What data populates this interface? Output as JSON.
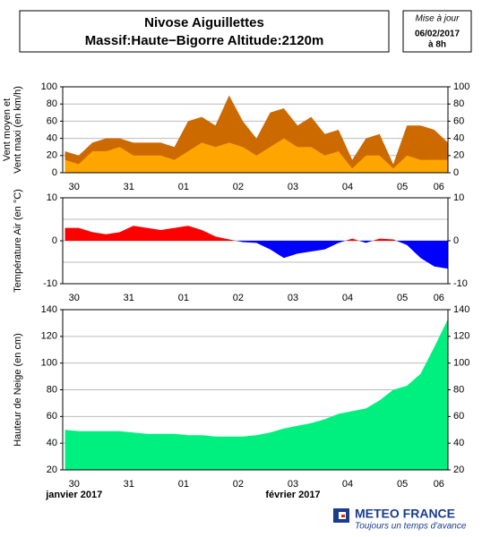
{
  "header": {
    "title": "Nivose Aiguillettes",
    "subtitle": "Massif:Haute−Bigorre Altitude:2120m",
    "update_label": "Mise à jour",
    "update_date": "06/02/2017",
    "update_time": "à 8h"
  },
  "footer": {
    "brand": "METEO FRANCE",
    "slogan": "Toujours un temps d'avance"
  },
  "chart_data": [
    {
      "type": "area",
      "ylabel": [
        "Vent moyen et",
        "Vent maxi (en km/h)"
      ],
      "x": [
        8,
        14,
        20,
        26,
        32,
        38,
        44,
        50,
        56,
        62,
        68,
        74,
        80,
        86,
        92,
        98,
        104,
        110,
        116,
        122,
        128,
        134,
        140,
        146,
        152,
        158,
        164,
        170,
        176
      ],
      "series": [
        {
          "color": "#cc6a00",
          "values": [
            25,
            20,
            35,
            40,
            40,
            35,
            35,
            35,
            30,
            60,
            65,
            55,
            90,
            60,
            40,
            70,
            75,
            55,
            65,
            45,
            50,
            15,
            40,
            45,
            10,
            55,
            55,
            50,
            35
          ]
        },
        {
          "color": "#ffa500",
          "values": [
            15,
            10,
            25,
            25,
            30,
            20,
            20,
            20,
            15,
            25,
            35,
            30,
            35,
            30,
            20,
            30,
            40,
            30,
            30,
            20,
            25,
            5,
            20,
            20,
            5,
            20,
            15,
            15,
            15
          ]
        }
      ],
      "xlim": [
        7,
        176
      ],
      "xticks": [
        {
          "value": 12,
          "label": "30"
        },
        {
          "value": 36,
          "label": "31"
        },
        {
          "value": 60,
          "label": "01"
        },
        {
          "value": 84,
          "label": "02"
        },
        {
          "value": 108,
          "label": "03"
        },
        {
          "value": 132,
          "label": "04"
        },
        {
          "value": 156,
          "label": "05"
        },
        {
          "value": 172,
          "label": "06"
        }
      ],
      "ylim": [
        0,
        100
      ],
      "yticks": [
        0,
        20,
        40,
        60,
        80,
        100
      ],
      "grid": true
    },
    {
      "type": "signed-area",
      "ylabel": [
        "Température Air (en °C)"
      ],
      "x": [
        8,
        14,
        20,
        26,
        32,
        38,
        44,
        50,
        56,
        62,
        68,
        74,
        80,
        86,
        92,
        98,
        104,
        110,
        116,
        122,
        128,
        134,
        140,
        146,
        152,
        158,
        164,
        170,
        176
      ],
      "values": [
        3,
        3,
        2,
        1.5,
        2,
        3.5,
        3,
        2.5,
        3,
        3.5,
        2.5,
        1,
        0.3,
        -0.3,
        -0.5,
        -2,
        -4,
        -3,
        -2.5,
        -2,
        -0.5,
        0.5,
        -0.5,
        0.5,
        0.3,
        -1,
        -4,
        -6,
        -6.5
      ],
      "color_above": "#ff0000",
      "color_below": "#0000ff",
      "xlim": [
        7,
        176
      ],
      "xticks": [
        {
          "value": 12,
          "label": "30"
        },
        {
          "value": 36,
          "label": "31"
        },
        {
          "value": 60,
          "label": "01"
        },
        {
          "value": 84,
          "label": "02"
        },
        {
          "value": 108,
          "label": "03"
        },
        {
          "value": 132,
          "label": "04"
        },
        {
          "value": 156,
          "label": "05"
        },
        {
          "value": 172,
          "label": "06"
        }
      ],
      "ylim": [
        -10,
        10
      ],
      "yticks": [
        -10,
        0,
        10
      ],
      "gridlines": [
        -5,
        5
      ],
      "grid": true
    },
    {
      "type": "area",
      "ylabel": [
        "Hauteur de Neige (en cm)"
      ],
      "x": [
        8,
        14,
        20,
        26,
        32,
        38,
        44,
        50,
        56,
        62,
        68,
        74,
        80,
        86,
        92,
        98,
        104,
        110,
        116,
        122,
        128,
        134,
        140,
        146,
        152,
        158,
        164,
        170,
        176
      ],
      "series": [
        {
          "color": "#00f080",
          "values": [
            50,
            49,
            49,
            49,
            49,
            48,
            47,
            47,
            47,
            46,
            46,
            45,
            45,
            45,
            46,
            48,
            51,
            53,
            55,
            58,
            62,
            64,
            66,
            72,
            80,
            83,
            92,
            112,
            133
          ]
        }
      ],
      "xlim": [
        7,
        176
      ],
      "xticks": [
        {
          "value": 12,
          "label": "30"
        },
        {
          "value": 36,
          "label": "31"
        },
        {
          "value": 60,
          "label": "01"
        },
        {
          "value": 84,
          "label": "02"
        },
        {
          "value": 108,
          "label": "03"
        },
        {
          "value": 132,
          "label": "04"
        },
        {
          "value": 156,
          "label": "05"
        },
        {
          "value": 172,
          "label": "06"
        }
      ],
      "ylim": [
        20,
        140
      ],
      "yticks": [
        20,
        40,
        60,
        80,
        100,
        120,
        140
      ],
      "grid": true,
      "month_labels": [
        {
          "value": 12,
          "label": "janvier 2017"
        },
        {
          "value": 108,
          "label": "février 2017"
        }
      ]
    }
  ]
}
